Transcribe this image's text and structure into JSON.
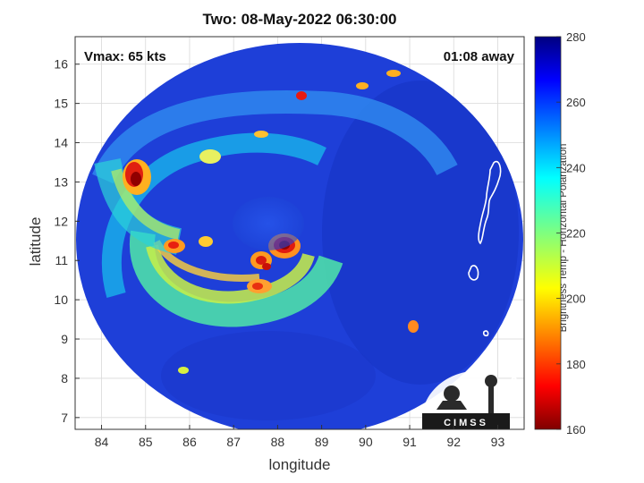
{
  "title": "Two: 08-May-2022 06:30:00",
  "annotations": {
    "vmax": "Vmax: 65 kts",
    "away": "01:08 away"
  },
  "axes": {
    "xlabel": "longitude",
    "ylabel": "latitude",
    "xlim": [
      83.4,
      93.6
    ],
    "ylim": [
      6.7,
      16.7
    ],
    "xticks": [
      "84",
      "85",
      "86",
      "87",
      "88",
      "89",
      "90",
      "91",
      "92",
      "93"
    ],
    "yticks": [
      "7",
      "8",
      "9",
      "10",
      "11",
      "12",
      "13",
      "14",
      "15",
      "16"
    ]
  },
  "colorbar": {
    "label": "Brightness Temp - Horizontal Polarization",
    "min": 160,
    "max": 280,
    "ticks": [
      "160",
      "180",
      "200",
      "220",
      "240",
      "260",
      "280"
    ],
    "colormap": "jet"
  },
  "logo": {
    "text": "CIMSS"
  },
  "colors": {
    "background_warm": "#1a3fd6",
    "outside_swath": "#ffffff"
  }
}
